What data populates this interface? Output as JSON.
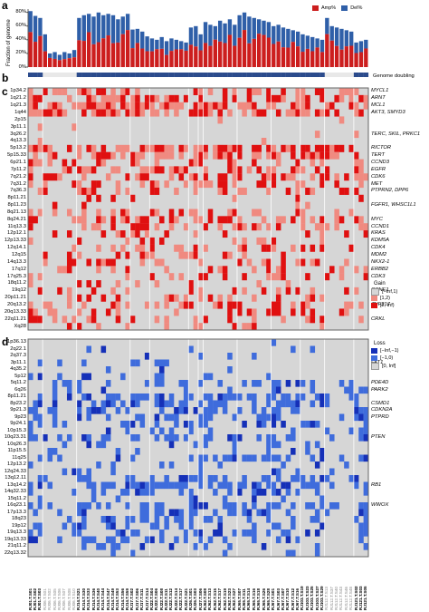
{
  "panels": {
    "a": "a",
    "b": "b",
    "c": "c",
    "d": "d"
  },
  "panel_a": {
    "ylabel": "Fraction of genome",
    "yticks": [
      "0%",
      "20%",
      "40%",
      "60%",
      "80%"
    ],
    "legend": [
      {
        "label": "Amp%",
        "color": "#cc1e1e"
      },
      {
        "label": "Del%",
        "color": "#2f5fa8"
      }
    ]
  },
  "panel_b": {
    "label": "Genome doubling",
    "color": "#2b4b8c"
  },
  "panel_c": {
    "rows": [
      "1p34.2",
      "1q21.2",
      "1q21.3",
      "1q44",
      "2p15",
      "3p11.1",
      "3q26.2",
      "4q13.3",
      "5p13.2",
      "5p15.33",
      "6p21.1",
      "7p11.2",
      "7q21.2",
      "7q31.2",
      "7q36.3",
      "8p11.21",
      "8p11.23",
      "8q21.13",
      "8q24.21",
      "11q13.3",
      "12p12.1",
      "12p13.33",
      "12q14.1",
      "12q15",
      "14q13.3",
      "17q12",
      "17q25.3",
      "18q11.2",
      "19q12",
      "20p11.21",
      "20q13.2",
      "20q13.33",
      "22q11.21",
      "Xq28"
    ],
    "genes": [
      {
        "row": 0,
        "text": "MYCL1"
      },
      {
        "row": 1,
        "text": "ARNT"
      },
      {
        "row": 2,
        "text": "MCL1"
      },
      {
        "row": 3,
        "text": "AKT3, SMYD3"
      },
      {
        "row": 6,
        "text": "TERC, SKIL, PRKC1"
      },
      {
        "row": 8,
        "text": "RICTOR"
      },
      {
        "row": 9,
        "text": "TERT"
      },
      {
        "row": 10,
        "text": "CCND3"
      },
      {
        "row": 11,
        "text": "EGFR"
      },
      {
        "row": 12,
        "text": "CDK6"
      },
      {
        "row": 13,
        "text": "MET"
      },
      {
        "row": 14,
        "text": "PTPRN2, DPP6"
      },
      {
        "row": 16,
        "text": "FGFR1, WHSC1L1"
      },
      {
        "row": 18,
        "text": "MYC"
      },
      {
        "row": 19,
        "text": "CCND1"
      },
      {
        "row": 20,
        "text": "KRAS"
      },
      {
        "row": 21,
        "text": "KDM5A"
      },
      {
        "row": 22,
        "text": "CDK4"
      },
      {
        "row": 23,
        "text": "MDM2"
      },
      {
        "row": 24,
        "text": "NKX2-1"
      },
      {
        "row": 25,
        "text": "ERBB2"
      },
      {
        "row": 26,
        "text": "CDK3"
      },
      {
        "row": 28,
        "text": "CCNE1"
      },
      {
        "row": 30,
        "text": "ZNF217"
      },
      {
        "row": 32,
        "text": "CRKL"
      }
    ],
    "legend_title": "Gain",
    "legend": [
      {
        "label": "[−Inf,1)",
        "color": "#d6d6d6"
      },
      {
        "label": "[1,2)",
        "color": "#f08a80"
      },
      {
        "label": "[2, Inf)",
        "color": "#e01010"
      }
    ]
  },
  "panel_d": {
    "rows": [
      "1p36.13",
      "2q22.1",
      "2q37.3",
      "3p11.1",
      "4q35.2",
      "5p12",
      "5q11.2",
      "6q26",
      "8p11.21",
      "8p23.2",
      "9p21.3",
      "9p23",
      "9p24.1",
      "10p15.3",
      "10q23.31",
      "10q26.3",
      "11p15.5",
      "11q25",
      "12p13.2",
      "12q24.33",
      "13q12.11",
      "13q14.2",
      "14q32.33",
      "15q11.2",
      "16q23.1",
      "17p13.3",
      "18q23",
      "19p12",
      "19q13.3",
      "19q13.33",
      "21q11.2",
      "22q13.32"
    ],
    "genes": [
      {
        "row": 3,
        "text": "FAT1"
      },
      {
        "row": 6,
        "text": "PDE4D"
      },
      {
        "row": 7,
        "text": "PARK2"
      },
      {
        "row": 9,
        "text": "CSMD1"
      },
      {
        "row": 10,
        "text": "CDKN2A"
      },
      {
        "row": 11,
        "text": "PTPRD"
      },
      {
        "row": 14,
        "text": "PTEN"
      },
      {
        "row": 21,
        "text": "RB1"
      },
      {
        "row": 24,
        "text": "WWOX"
      }
    ],
    "legend_title": "Loss",
    "legend": [
      {
        "label": "[−Inf,−1)",
        "color": "#1530b8"
      },
      {
        "label": "[−1,0)",
        "color": "#3f6cdc"
      },
      {
        "label": "[0, Inf]",
        "color": "#d6d6d6"
      }
    ]
  },
  "samples": [
    "RJ01.T.S01",
    "RJ01.T.S02",
    "RJ01.T.S03",
    "RJ06.T.S01",
    "RJ06.T.S02",
    "RJ06.T.S05",
    "RJ06.T.S06",
    "RJ06.T.S07",
    "RJ06.T.S08",
    "RJ06.T.S10",
    "RJ14.T.S21",
    "RJ14.T.S30",
    "RJ14.T.S33",
    "RJ14.T.S36",
    "RJ14.T.S40",
    "RJ14.T.S44",
    "RJ14.T.S47",
    "RJ14.T.S49",
    "RJ14.T.S53",
    "RJ14.T.S56",
    "RJ14.T.S59",
    "RJ17.T.S02",
    "RJ17.T.S06",
    "RJ17.T.S11",
    "RJ17.T.S14",
    "RJ22.T.S04",
    "RJ22.T.S06",
    "RJ22.T.S08",
    "RJ22.T.S11",
    "RJ22.T.S12",
    "RJ22.T.S14",
    "RJ22.T.S17",
    "RJ22.T.S21",
    "RJ26.T.S01",
    "RJ26.T.S03",
    "RJ27.T.S06",
    "RJ62.T.S08",
    "RJ62.T.S13",
    "RJ62.T.S15",
    "RJ62.T.S17",
    "RJ62.T.S19",
    "RJ62.T.S23",
    "RJ62.T.S27",
    "RJ65.T.S07",
    "RJ65.T.S11",
    "RJ65.T.S14",
    "RJ65.T.S16",
    "RJ65.T.S18",
    "RJ65.T.S26",
    "RJ65.T.S28",
    "RJ67.T.S01",
    "RJ67.T.S03",
    "RJ67.T.S07",
    "RJ67.T.S10",
    "RJ67.T.S12",
    "RJ67.T.S16",
    "RJ103.T.S19",
    "RJ103.T.S23",
    "RJ103.T.S25",
    "RJ103.T.S27",
    "RJ103.T.S29",
    "RJ112.T.S13",
    "RJ112.T.S37",
    "RJ112.T.S40",
    "RJ112.T.S43",
    "RJ112.T.S46",
    "RJ112.T.S48",
    "RJ121.T.S02",
    "RJ121.T.S03",
    "RJ121.T.S05"
  ]
}
